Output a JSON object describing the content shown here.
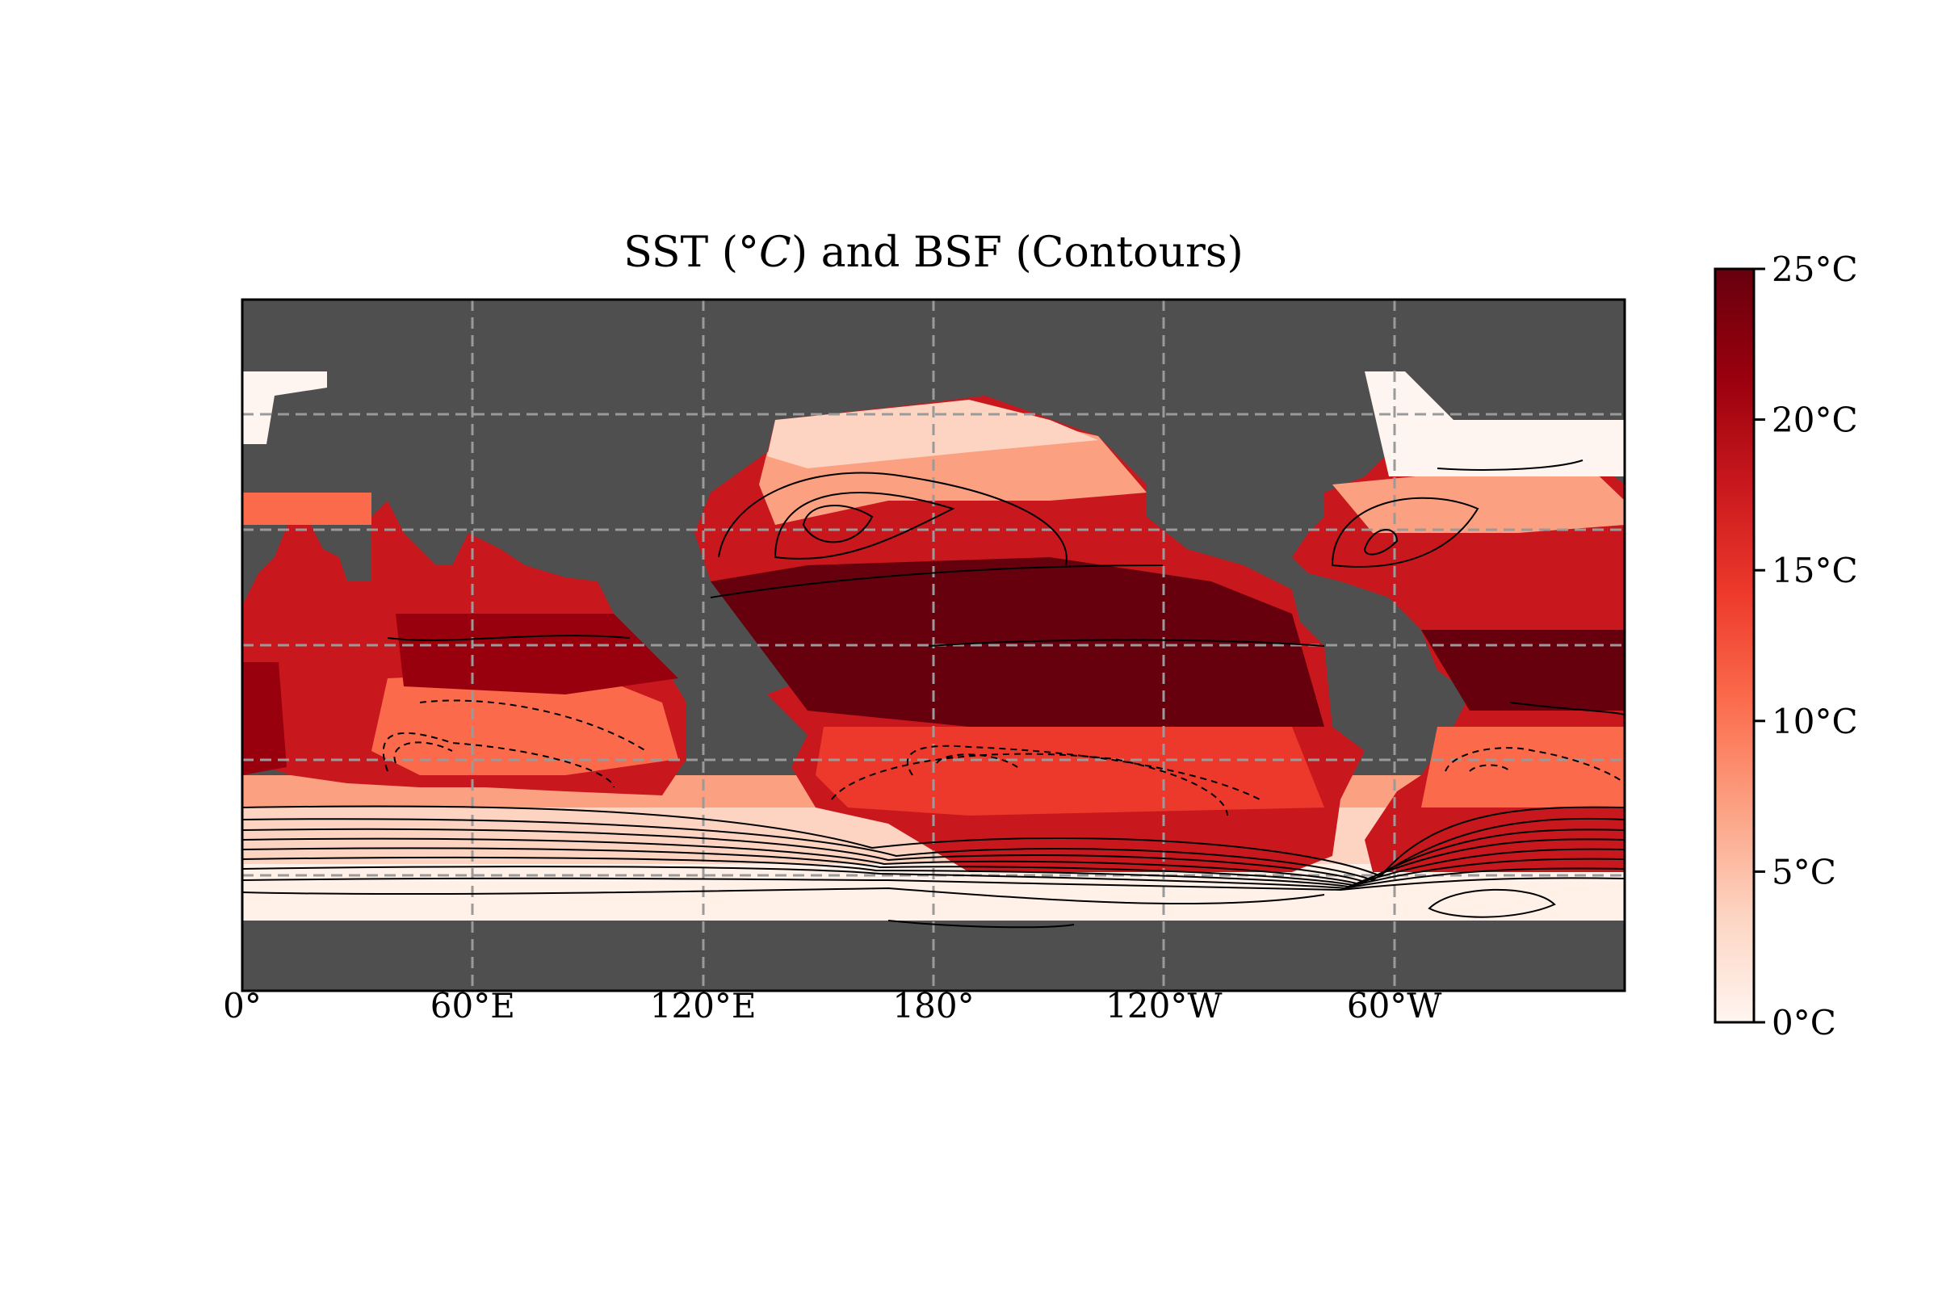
{
  "title": {
    "prefix": "SST (°",
    "unit_symbol": "C",
    "suffix": ") and BSF (Contours)"
  },
  "map": {
    "x_ticks": [
      "0°",
      "60°E",
      "120°E",
      "180°",
      "120°W",
      "60°W"
    ],
    "land_color": "#4f4f4f",
    "grid_color": "#9a9a9a",
    "contour_color": "#000000",
    "colormap": [
      "#fff5f0",
      "#fdd4c2",
      "#fca082",
      "#fb6b4b",
      "#ed392b",
      "#c9181d",
      "#99000d",
      "#67000d"
    ]
  },
  "colorbar": {
    "min": 0,
    "max": 25,
    "ticks": [
      {
        "value": 0,
        "label": "0°C"
      },
      {
        "value": 5,
        "label": "5°C"
      },
      {
        "value": 10,
        "label": "10°C"
      },
      {
        "value": 15,
        "label": "15°C"
      },
      {
        "value": 20,
        "label": "20°C"
      },
      {
        "value": 25,
        "label": "25°C"
      }
    ]
  }
}
